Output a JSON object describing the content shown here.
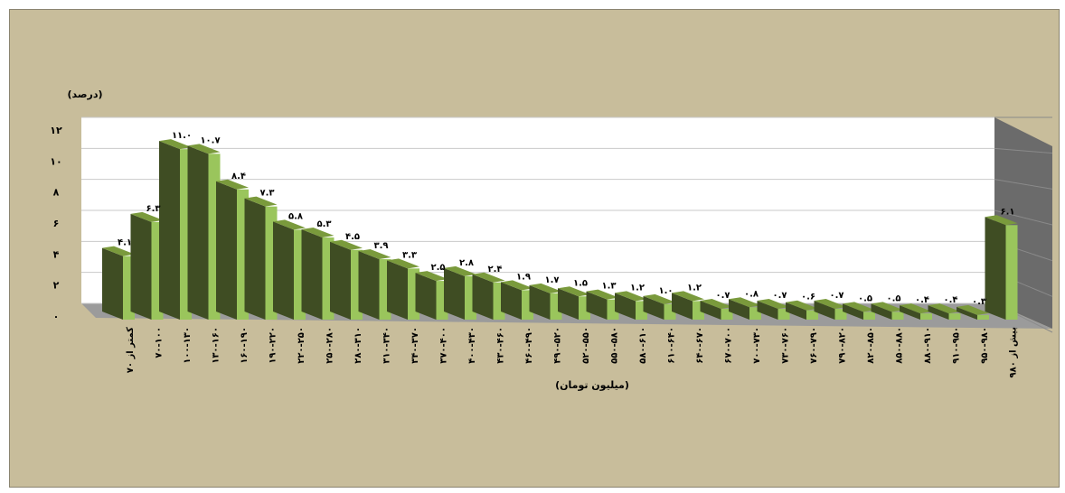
{
  "chart_data": {
    "type": "bar",
    "ylabel": "(درصد)",
    "xlabel": "(میلیون تومان)",
    "ylim": [
      0,
      12
    ],
    "yticks": [
      "۰",
      "۲",
      "۴",
      "۶",
      "۸",
      "۱۰",
      "۱۲"
    ],
    "categories": [
      "کمتر از ۷۰",
      "۷۰-۱۰۰",
      "۱۰۰-۱۳۰",
      "۱۳۰-۱۶۰",
      "۱۶۰-۱۹۰",
      "۱۹۰-۲۲۰",
      "۲۲۰-۲۵۰",
      "۲۵۰-۲۸۰",
      "۲۸۰-۳۱۰",
      "۳۱۰-۳۴۰",
      "۳۴۰-۳۷۰",
      "۳۷۰-۴۰۰",
      "۴۰۰-۴۳۰",
      "۴۳۰-۴۶۰",
      "۴۶۰-۴۹۰",
      "۴۹۰-۵۲۰",
      "۵۲۰-۵۵۰",
      "۵۵۰-۵۸۰",
      "۵۸۰-۶۱۰",
      "۶۱۰-۶۴۰",
      "۶۴۰-۶۷۰",
      "۶۷۰-۷۰۰",
      "۷۰۰-۷۳۰",
      "۷۳۰-۷۶۰",
      "۷۶۰-۷۹۰",
      "۷۹۰-۸۲۰",
      "۸۲۰-۸۵۰",
      "۸۵۰-۸۸۰",
      "۸۸۰-۹۱۰",
      "۹۱۰-۹۵۰",
      "۹۵۰-۹۸۰",
      "بیش از ۹۸۰"
    ],
    "values": [
      4.1,
      6.3,
      11.0,
      10.7,
      8.4,
      7.3,
      5.8,
      5.3,
      4.5,
      3.9,
      3.3,
      2.5,
      2.8,
      2.4,
      1.9,
      1.7,
      1.5,
      1.3,
      1.2,
      1.0,
      1.2,
      0.7,
      0.8,
      0.7,
      0.6,
      0.7,
      0.5,
      0.5,
      0.4,
      0.4,
      0.3,
      6.1
    ],
    "data_labels": [
      "۴.۱",
      "۶.۳",
      "۱۱.۰",
      "۱۰.۷",
      "۸.۴",
      "۷.۳",
      "۵.۸",
      "۵.۳",
      "۴.۵",
      "۳.۹",
      "۳.۳",
      "۲.۵",
      "۲.۸",
      "۲.۴",
      "۱.۹",
      "۱.۷",
      "۱.۵",
      "۱.۳",
      "۱.۲",
      "۱.۰",
      "۱.۲",
      "۰.۷",
      "۰.۸",
      "۰.۷",
      "۰.۶",
      "۰.۷",
      "۰.۵",
      "۰.۵",
      "۰.۴",
      "۰.۴",
      "۰.۳",
      "۶.۱"
    ],
    "grid": true,
    "legend": "none",
    "colors": {
      "background": "#c8bd9b",
      "plot_area": "#ffffff",
      "back_wall_side": "#6b6b6b",
      "floor": "#9b9b9b",
      "bar_front": "#9ac55c",
      "bar_side": "#3f4d23",
      "bar_top": "#7a9a3c"
    }
  }
}
